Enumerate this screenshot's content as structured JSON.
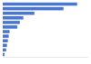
{
  "chart_data": {
    "type": "bar",
    "orientation": "horizontal",
    "categories": [
      null,
      null,
      null,
      null,
      null,
      null,
      null,
      null,
      null,
      null,
      null,
      null
    ],
    "values": [
      87,
      71,
      37,
      24,
      20,
      17,
      8,
      7,
      6,
      5,
      4,
      2
    ],
    "color": "#4a78d0",
    "xlim": [
      0,
      100
    ],
    "grid": false,
    "tick_labels": false
  }
}
